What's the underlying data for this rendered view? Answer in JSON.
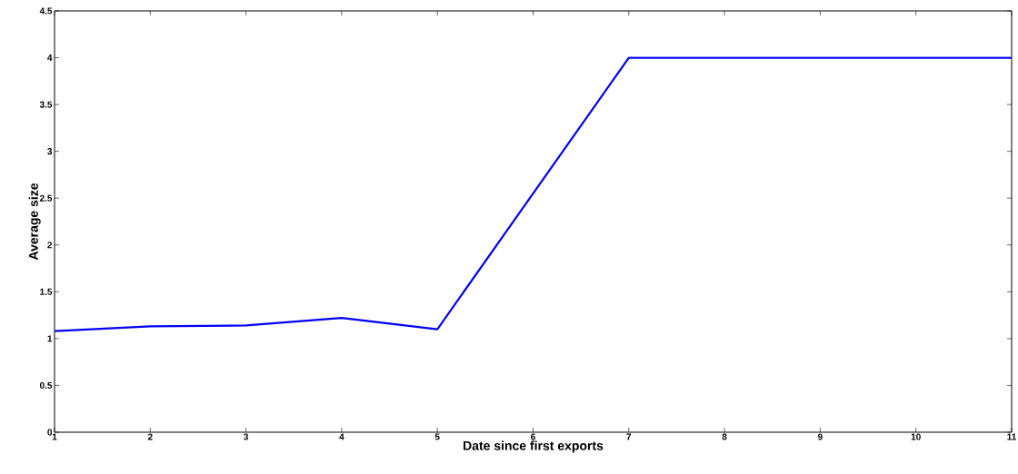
{
  "chart_data": {
    "type": "line",
    "xlabel": "Date since first exports",
    "ylabel": "Average size",
    "x": [
      1,
      2,
      3,
      4,
      5,
      6,
      7,
      8,
      9,
      10,
      11
    ],
    "series": [
      {
        "color": "#0000ff",
        "values": [
          1.08,
          1.13,
          1.14,
          1.22,
          1.1,
          2.55,
          4,
          4,
          4,
          4,
          4
        ]
      }
    ],
    "xlim": [
      1,
      11
    ],
    "xticks": [
      1,
      2,
      3,
      4,
      5,
      6,
      7,
      8,
      9,
      10,
      11
    ],
    "ylim": [
      0,
      4.5
    ],
    "yticks": [
      0,
      0.5,
      1,
      1.5,
      2,
      2.5,
      3,
      3.5,
      4,
      4.5
    ],
    "marker": "none",
    "line_style": "solid"
  }
}
